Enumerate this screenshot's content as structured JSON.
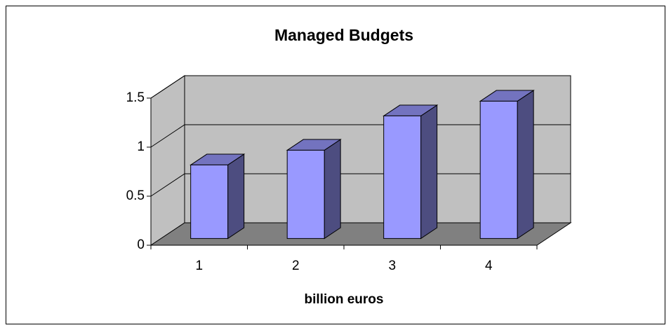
{
  "chart_data": {
    "type": "bar3d",
    "title": "Managed Budgets",
    "xlabel": "billion euros",
    "categories": [
      "1",
      "2",
      "3",
      "4"
    ],
    "values": [
      0.75,
      0.9,
      1.25,
      1.4
    ],
    "color": "#9999ff",
    "ylim": [
      0,
      1.5
    ],
    "yticks": [
      0,
      0.5,
      1,
      1.5
    ],
    "grid": true
  }
}
